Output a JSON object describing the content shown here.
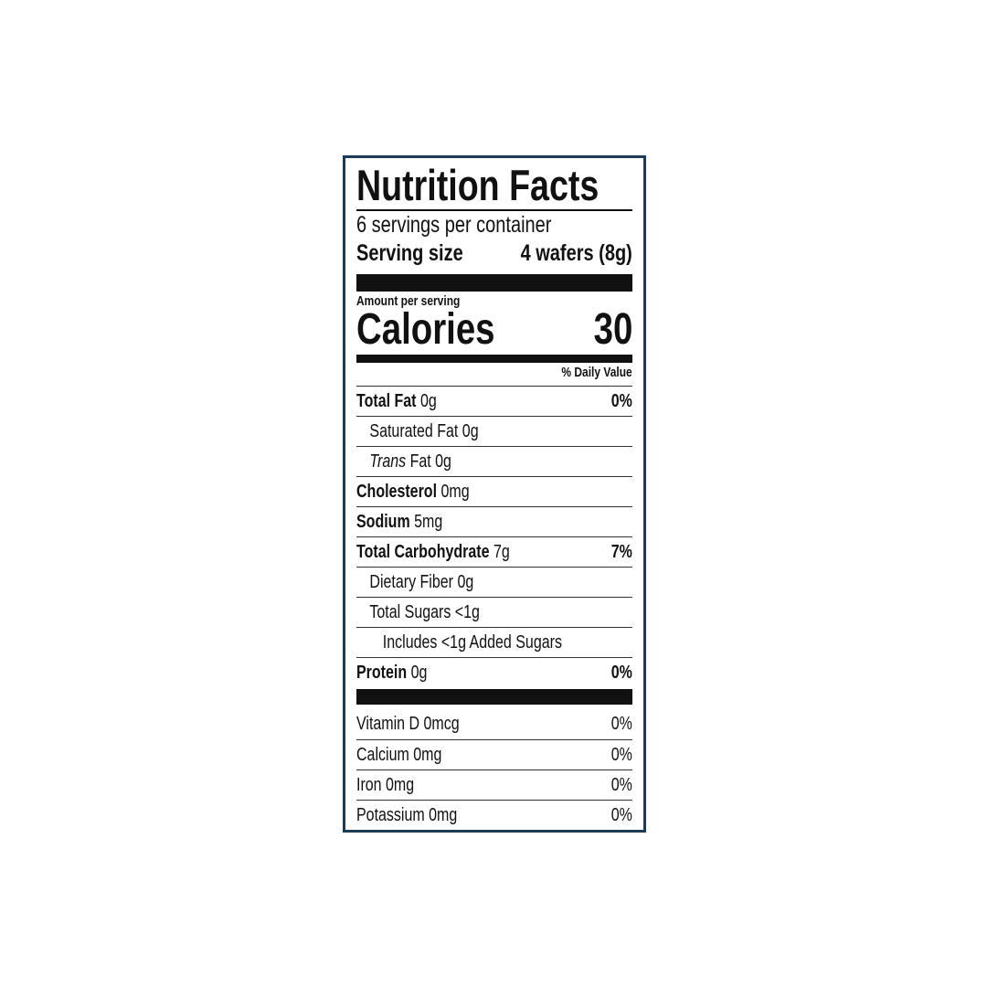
{
  "title": "Nutrition Facts",
  "servings_per_container": "6 servings per container",
  "serving_size": {
    "label": "Serving size",
    "value": "4 wafers (8g)"
  },
  "amount_per_serving": "Amount per serving",
  "calories": {
    "label": "Calories",
    "value": "30"
  },
  "daily_value_header": "% Daily Value",
  "nutrients": [
    {
      "name": "Total Fat",
      "amount": "0g",
      "dv": "0%",
      "bold": true,
      "indent": 0
    },
    {
      "name": "Saturated Fat",
      "amount": "0g",
      "dv": "",
      "bold": false,
      "indent": 1
    },
    {
      "name": "Trans",
      "name_suffix": "Fat",
      "amount": "0g",
      "dv": "",
      "bold": false,
      "indent": 1,
      "italic_prefix": true
    },
    {
      "name": "Cholesterol",
      "amount": "0mg",
      "dv": "",
      "bold": true,
      "indent": 0
    },
    {
      "name": "Sodium",
      "amount": "5mg",
      "dv": "",
      "bold": true,
      "indent": 0
    },
    {
      "name": "Total Carbohydrate",
      "amount": "7g",
      "dv": "7%",
      "bold": true,
      "indent": 0
    },
    {
      "name": "Dietary Fiber",
      "amount": "0g",
      "dv": "",
      "bold": false,
      "indent": 1
    },
    {
      "name": "Total Sugars",
      "amount": "<1g",
      "dv": "",
      "bold": false,
      "indent": 1
    },
    {
      "name": "Includes <1g Added Sugars",
      "amount": "",
      "dv": "",
      "bold": false,
      "indent": 2
    },
    {
      "name": "Protein",
      "amount": "0g",
      "dv": "0%",
      "bold": true,
      "indent": 0
    }
  ],
  "vitamins": [
    {
      "name": "Vitamin D",
      "amount": "0mcg",
      "dv": "0%"
    },
    {
      "name": "Calcium",
      "amount": "0mg",
      "dv": "0%"
    },
    {
      "name": "Iron",
      "amount": "0mg",
      "dv": "0%"
    },
    {
      "name": "Potassium",
      "amount": "0mg",
      "dv": "0%"
    }
  ],
  "colors": {
    "border": "#1d3a58",
    "text": "#111111"
  }
}
